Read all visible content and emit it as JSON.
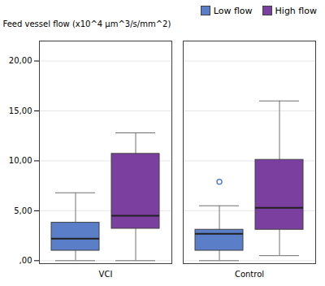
{
  "chart_data": {
    "type": "box",
    "categories": [
      "VCI",
      "Control"
    ],
    "series": [
      {
        "name": "Low flow",
        "color": "#5b7ec8",
        "stats": [
          {
            "whisker_low": 0.0,
            "q1": 1.0,
            "median": 2.2,
            "q3": 3.8,
            "whisker_high": 6.8
          },
          {
            "whisker_low": 0.0,
            "q1": 1.0,
            "median": 2.7,
            "q3": 3.1,
            "whisker_high": 5.5
          }
        ],
        "outliers": [
          {
            "category": "Control",
            "value": 7.9
          }
        ]
      },
      {
        "name": "High flow",
        "color": "#7b3fa0",
        "stats": [
          {
            "whisker_low": 0.0,
            "q1": 3.2,
            "median": 4.5,
            "q3": 10.7,
            "whisker_high": 12.8
          },
          {
            "whisker_low": 0.5,
            "q1": 3.1,
            "median": 5.3,
            "q3": 10.1,
            "whisker_high": 16.0
          }
        ],
        "outliers": []
      }
    ],
    "ylabel": "Feed vessel flow (x10^4 μm^3/s/mm^2)",
    "ylim": [
      -0.3,
      22
    ],
    "yticks": [
      {
        "value": 0,
        "label": ",00"
      },
      {
        "value": 5,
        "label": "5,00"
      },
      {
        "value": 10,
        "label": "10,00"
      },
      {
        "value": 15,
        "label": "15,00"
      },
      {
        "value": 20,
        "label": "20,00"
      }
    ],
    "grid": true,
    "legend": "upper right"
  }
}
